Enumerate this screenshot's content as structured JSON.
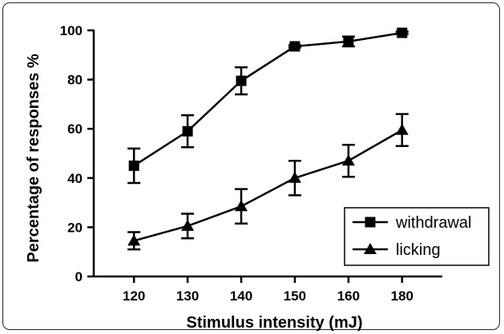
{
  "chart_data": {
    "type": "line",
    "xlabel": "Stimulus intensity (mJ)",
    "ylabel": "Percentage of responses %",
    "categories": [
      "120",
      "130",
      "140",
      "150",
      "160",
      "180"
    ],
    "ylim": [
      0,
      100
    ],
    "yticks": [
      "0",
      "20",
      "40",
      "60",
      "80",
      "100"
    ],
    "grid": false,
    "legend_position": "bottom-right",
    "series": [
      {
        "name": "withdrawal",
        "marker": "square",
        "values": [
          45,
          59,
          79.5,
          93.5,
          95.5,
          99
        ],
        "errors": [
          7,
          6.5,
          5.5,
          0.5,
          2,
          0.5
        ]
      },
      {
        "name": "licking",
        "marker": "triangle",
        "values": [
          14.5,
          20.5,
          28.5,
          40,
          47,
          59.5
        ],
        "errors": [
          3.5,
          5,
          7,
          7,
          6.5,
          6.5
        ]
      }
    ]
  }
}
